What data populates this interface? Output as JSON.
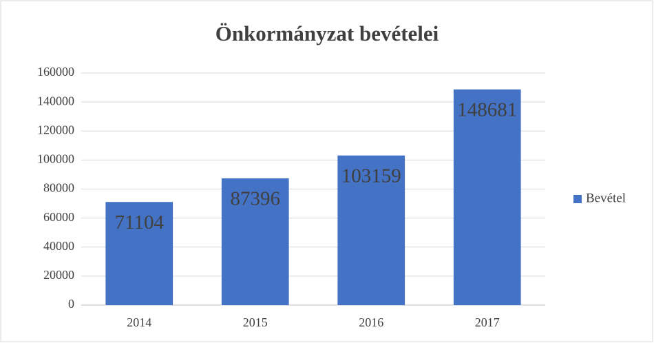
{
  "chart_data": {
    "type": "bar",
    "title": "Önkormányzat bevételei",
    "categories": [
      "2014",
      "2015",
      "2016",
      "2017"
    ],
    "series": [
      {
        "name": "Bevétel",
        "color": "#4472c4",
        "values": [
          71104,
          87396,
          103159,
          148681
        ]
      }
    ],
    "ylim": [
      0,
      160000
    ],
    "yticks": [
      0,
      20000,
      40000,
      60000,
      80000,
      100000,
      120000,
      140000,
      160000
    ],
    "grid": true,
    "legend": "right",
    "data_labels": true
  }
}
